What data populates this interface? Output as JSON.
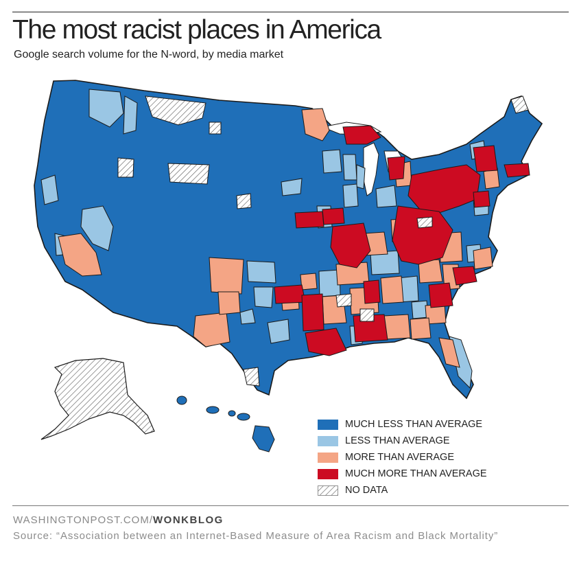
{
  "header": {
    "title": "The most racist places in America",
    "subtitle": "Google search volume for the N-word, by media market"
  },
  "colors": {
    "much_less": "#1f6fb8",
    "less": "#9ac6e4",
    "more": "#f4a585",
    "much_more": "#cc0b22",
    "no_data": "hatch"
  },
  "legend": {
    "items": [
      {
        "label": "MUCH LESS THAN AVERAGE",
        "color": "#1f6fb8"
      },
      {
        "label": "LESS THAN AVERAGE",
        "color": "#9ac6e4"
      },
      {
        "label": "MORE THAN AVERAGE",
        "color": "#f4a585"
      },
      {
        "label": "MUCH MORE THAN AVERAGE",
        "color": "#cc0b22"
      },
      {
        "label": "NO DATA",
        "color": "hatch"
      }
    ]
  },
  "footer": {
    "credit_site": "WASHINGTONPOST.COM/",
    "credit_blog": "WONKBLOG",
    "source": "Source: “Association between an Internet-Based Measure of Area Racism and Black Mortality”"
  }
}
